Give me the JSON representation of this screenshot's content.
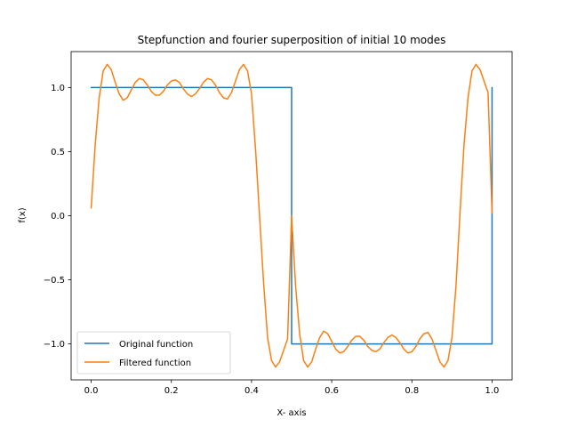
{
  "chart_data": {
    "type": "line",
    "title": "Stepfunction and fourier superposition of initial 10 modes",
    "xlabel": "X- axis",
    "ylabel": "f(x)",
    "xlim": [
      -0.05,
      1.05
    ],
    "ylim": [
      -1.28,
      1.28
    ],
    "xticks": [
      0.0,
      0.2,
      0.4,
      0.6,
      0.8,
      1.0
    ],
    "xtick_labels": [
      "0.0",
      "0.2",
      "0.4",
      "0.6",
      "0.8",
      "1.0"
    ],
    "yticks": [
      -1.0,
      -0.5,
      0.0,
      0.5,
      1.0
    ],
    "ytick_labels": [
      "−1.0",
      "−0.5",
      "0.0",
      "0.5",
      "1.0"
    ],
    "grid": false,
    "legend": "lower-left",
    "series": [
      {
        "name": "Original function",
        "color": "#1f77b4",
        "x": [
          0.0,
          0.5,
          0.5,
          1.0,
          1.0
        ],
        "y": [
          1.0,
          1.0,
          -1.0,
          -1.0,
          1.0
        ]
      },
      {
        "name": "Filtered function",
        "color": "#ff7f0e",
        "x": [
          0.0,
          0.01,
          0.02,
          0.03,
          0.04,
          0.05,
          0.06,
          0.07,
          0.08,
          0.09,
          0.1,
          0.11,
          0.12,
          0.13,
          0.14,
          0.15,
          0.16,
          0.17,
          0.18,
          0.19,
          0.2,
          0.21,
          0.22,
          0.23,
          0.24,
          0.25,
          0.26,
          0.27,
          0.28,
          0.29,
          0.3,
          0.31,
          0.32,
          0.33,
          0.34,
          0.35,
          0.36,
          0.37,
          0.38,
          0.39,
          0.4,
          0.41,
          0.42,
          0.43,
          0.44,
          0.45,
          0.46,
          0.47,
          0.48,
          0.49,
          0.5,
          0.51,
          0.52,
          0.53,
          0.54,
          0.55,
          0.56,
          0.57,
          0.58,
          0.59,
          0.6,
          0.61,
          0.62,
          0.63,
          0.64,
          0.65,
          0.66,
          0.67,
          0.68,
          0.69,
          0.7,
          0.71,
          0.72,
          0.73,
          0.74,
          0.75,
          0.76,
          0.77,
          0.78,
          0.79,
          0.8,
          0.81,
          0.82,
          0.83,
          0.84,
          0.85,
          0.86,
          0.87,
          0.88,
          0.89,
          0.9,
          0.91,
          0.92,
          0.93,
          0.94,
          0.95,
          0.96,
          0.97,
          0.98,
          0.99,
          1.0
        ],
        "y": [
          0.06,
          0.55,
          0.92,
          1.13,
          1.18,
          1.14,
          1.04,
          0.95,
          0.9,
          0.92,
          0.98,
          1.04,
          1.07,
          1.06,
          1.02,
          0.97,
          0.94,
          0.94,
          0.97,
          1.02,
          1.05,
          1.06,
          1.04,
          0.99,
          0.95,
          0.93,
          0.95,
          0.99,
          1.04,
          1.07,
          1.06,
          1.02,
          0.96,
          0.92,
          0.91,
          0.96,
          1.05,
          1.14,
          1.18,
          1.13,
          0.95,
          0.52,
          0.0,
          -0.52,
          -0.95,
          -1.13,
          -1.18,
          -1.14,
          -1.05,
          -0.96,
          0.0,
          -0.55,
          -0.92,
          -1.13,
          -1.18,
          -1.14,
          -1.04,
          -0.95,
          -0.9,
          -0.92,
          -0.98,
          -1.04,
          -1.07,
          -1.06,
          -1.02,
          -0.97,
          -0.94,
          -0.94,
          -0.97,
          -1.02,
          -1.05,
          -1.06,
          -1.04,
          -0.99,
          -0.95,
          -0.93,
          -0.95,
          -0.99,
          -1.04,
          -1.07,
          -1.06,
          -1.02,
          -0.96,
          -0.92,
          -0.91,
          -0.96,
          -1.05,
          -1.14,
          -1.18,
          -1.13,
          -0.95,
          -0.55,
          0.02,
          0.55,
          0.92,
          1.13,
          1.18,
          1.14,
          1.05,
          0.96,
          0.02
        ]
      }
    ]
  }
}
